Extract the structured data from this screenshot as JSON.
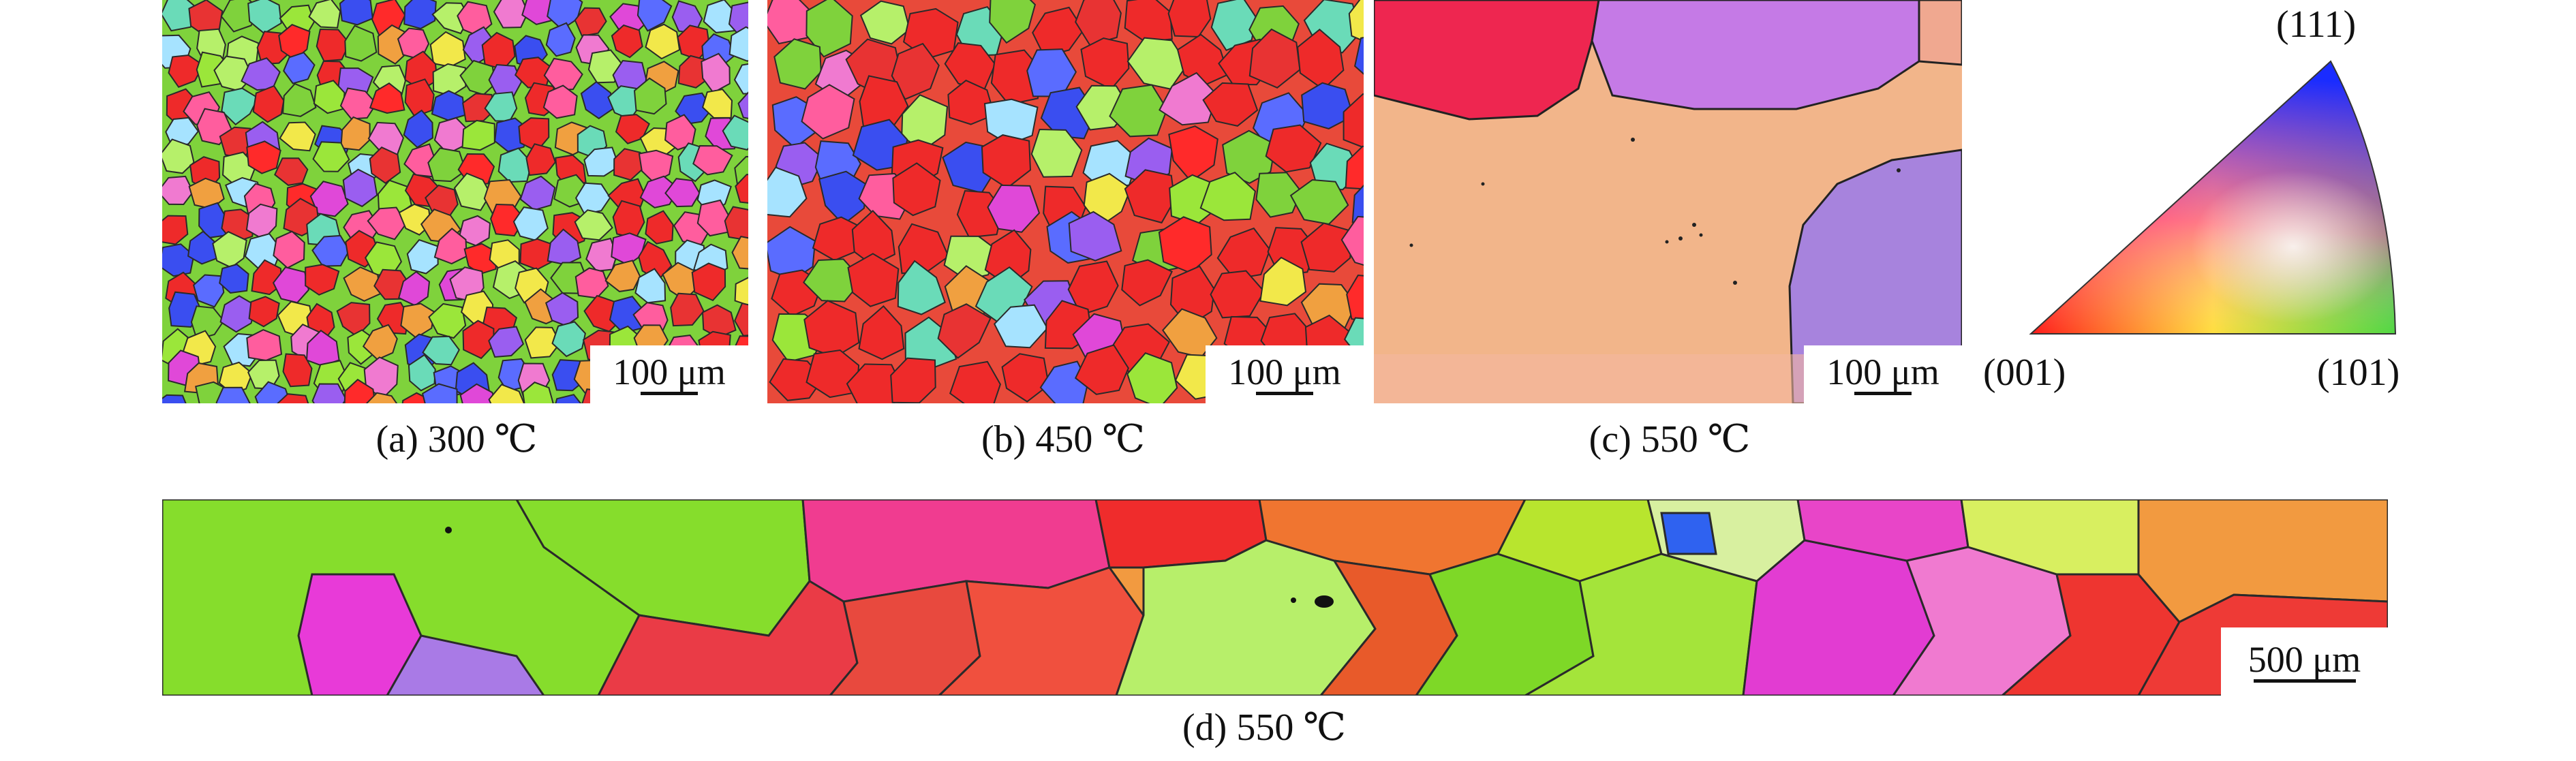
{
  "figure": {
    "panels": [
      {
        "id": "a",
        "caption": "(a) 300 ℃",
        "scale_bar": "100 μm"
      },
      {
        "id": "b",
        "caption": "(b) 450 ℃",
        "scale_bar": "100 μm"
      },
      {
        "id": "c",
        "caption": "(c) 550 ℃",
        "scale_bar": "100 μm"
      },
      {
        "id": "d",
        "caption": "(d) 550 ℃",
        "scale_bar": "500 μm"
      }
    ],
    "ipf_key": {
      "top_label": "(111)",
      "left_label": "(001)",
      "right_label": "(101)",
      "colors": {
        "001": "#ff1a1a",
        "101": "#38d92a",
        "111": "#1a2cff"
      }
    }
  }
}
